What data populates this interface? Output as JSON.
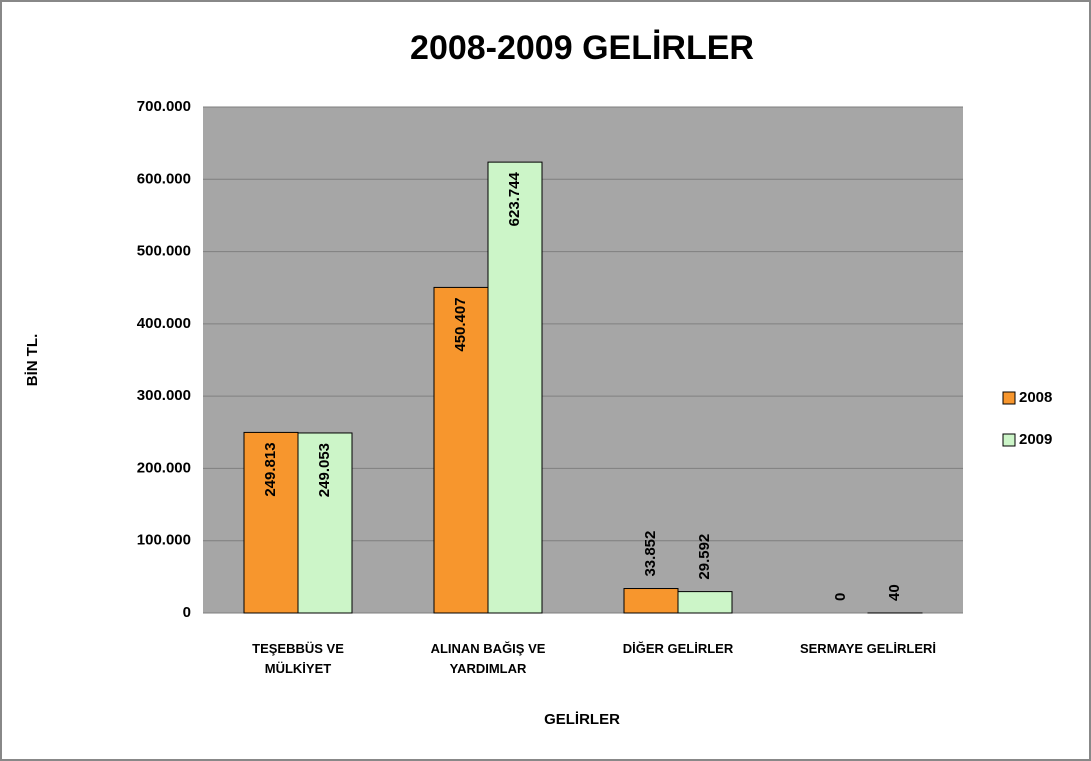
{
  "chart_data": {
    "type": "bar",
    "title": "2008-2009 GELİRLER",
    "y_label": "BİN TL.",
    "x_label": "GELİRLER",
    "categories": [
      "TEŞEBBÜS VE\nMÜLKİYET",
      "ALINAN BAĞIŞ VE\nYARDIMLAR",
      "DİĞER GELİRLER",
      "SERMAYE GELİRLERİ"
    ],
    "series": [
      {
        "name": "2008",
        "color": "#f7962d",
        "values": [
          249813,
          450407,
          33852,
          0
        ],
        "value_labels": [
          "249.813",
          "450.407",
          "33.852",
          "0"
        ]
      },
      {
        "name": "2009",
        "color": "#ccf5c8",
        "values": [
          249053,
          623744,
          29592,
          40
        ],
        "value_labels": [
          "249.053",
          "623.744",
          "29.592",
          "40"
        ]
      }
    ],
    "ylim": [
      0,
      700000
    ],
    "yticks": [
      0,
      {
        "value": 100000,
        "label": "100.000"
      },
      {
        "value": 200000,
        "label": "200.000"
      },
      {
        "value": 300000,
        "label": "300.000"
      },
      {
        "value": 400000,
        "label": "400.000"
      },
      {
        "value": 500000,
        "label": "500.000"
      },
      {
        "value": 600000,
        "label": "600.000"
      },
      {
        "value": 700000,
        "label": "700.000"
      }
    ],
    "grid": true,
    "legend": "right"
  }
}
